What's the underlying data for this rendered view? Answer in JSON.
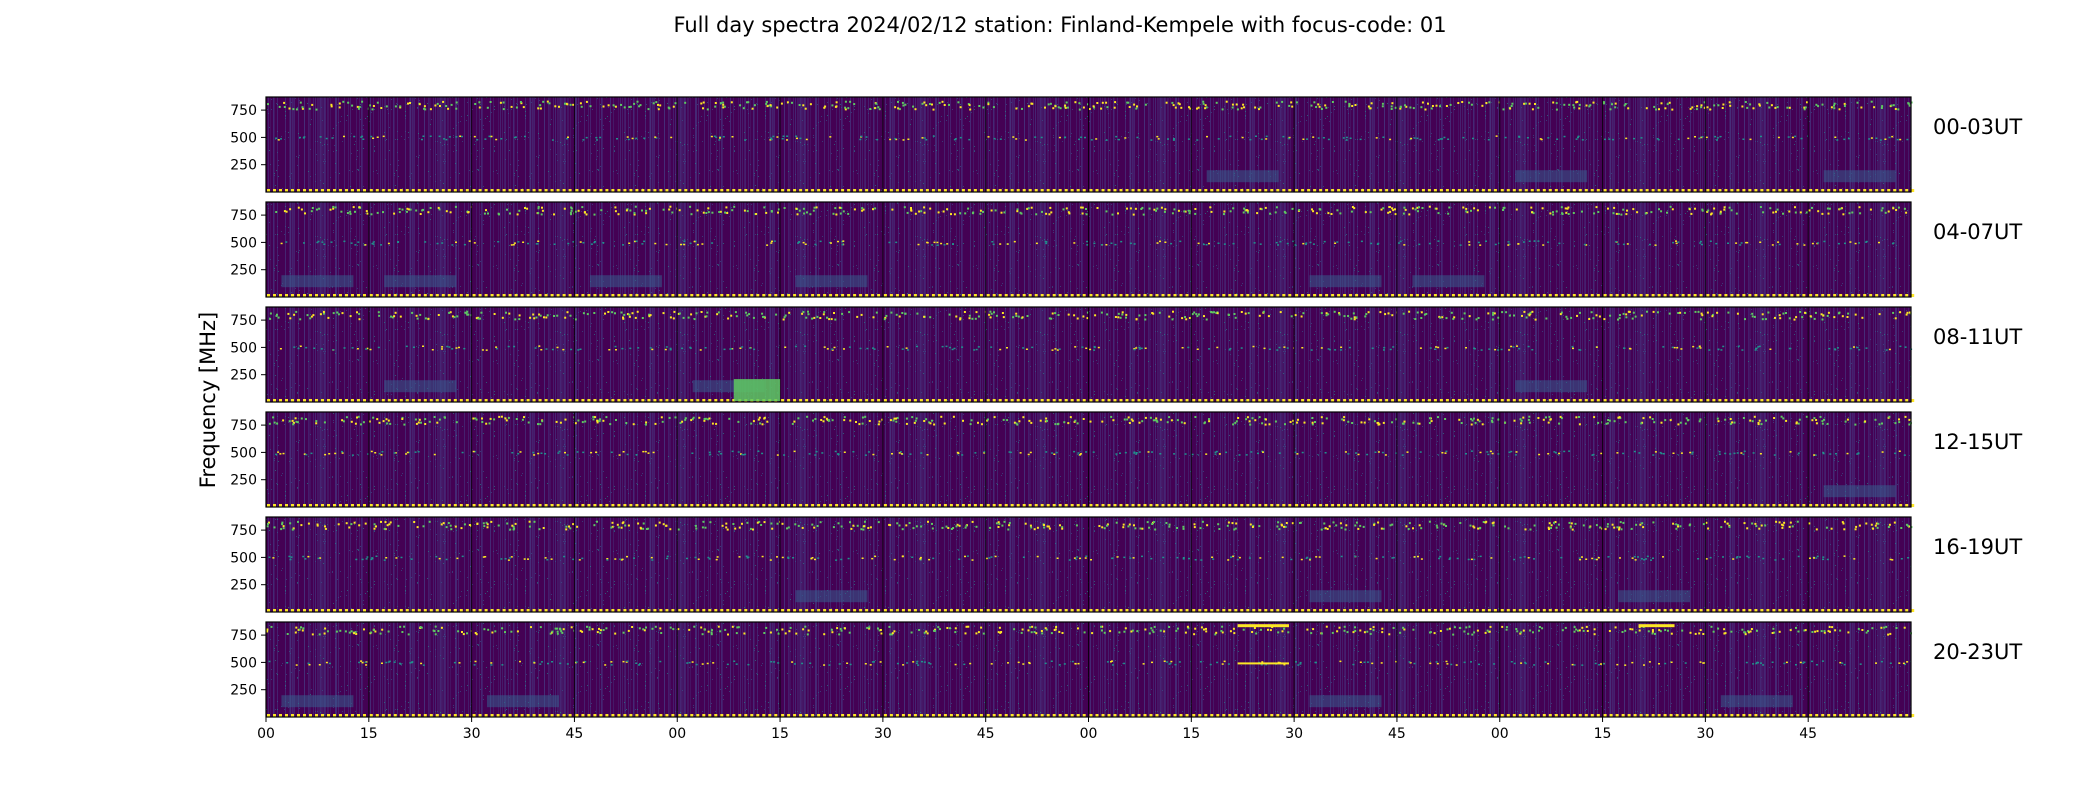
{
  "chart_data": {
    "type": "heatmap",
    "title": "Full day spectra 2024/02/12 station: Finland-Kempele with focus-code: 01",
    "ylabel": "Frequency [MHz]",
    "xlabel": "",
    "x_tick_labels": [
      "00",
      "15",
      "30",
      "45",
      "00",
      "15",
      "30",
      "45",
      "00",
      "15",
      "30",
      "45",
      "00",
      "15",
      "30",
      "45"
    ],
    "y_tick_labels": [
      "750",
      "500",
      "250"
    ],
    "y_ticks": [
      750,
      500,
      250
    ],
    "ylim": [
      0,
      870
    ],
    "colormap": "viridis",
    "rows": [
      {
        "label": "00-03UT"
      },
      {
        "label": "04-07UT"
      },
      {
        "label": "08-11UT"
      },
      {
        "label": "12-15UT"
      },
      {
        "label": "16-19UT"
      },
      {
        "label": "20-23UT"
      }
    ],
    "panels_per_row": 16,
    "minutes_per_panel": 15,
    "colors": {
      "background": "#440154",
      "low": "#46327e",
      "mid": "#365c8d",
      "teal": "#21918c",
      "green": "#5ec962",
      "high": "#fde725"
    }
  }
}
